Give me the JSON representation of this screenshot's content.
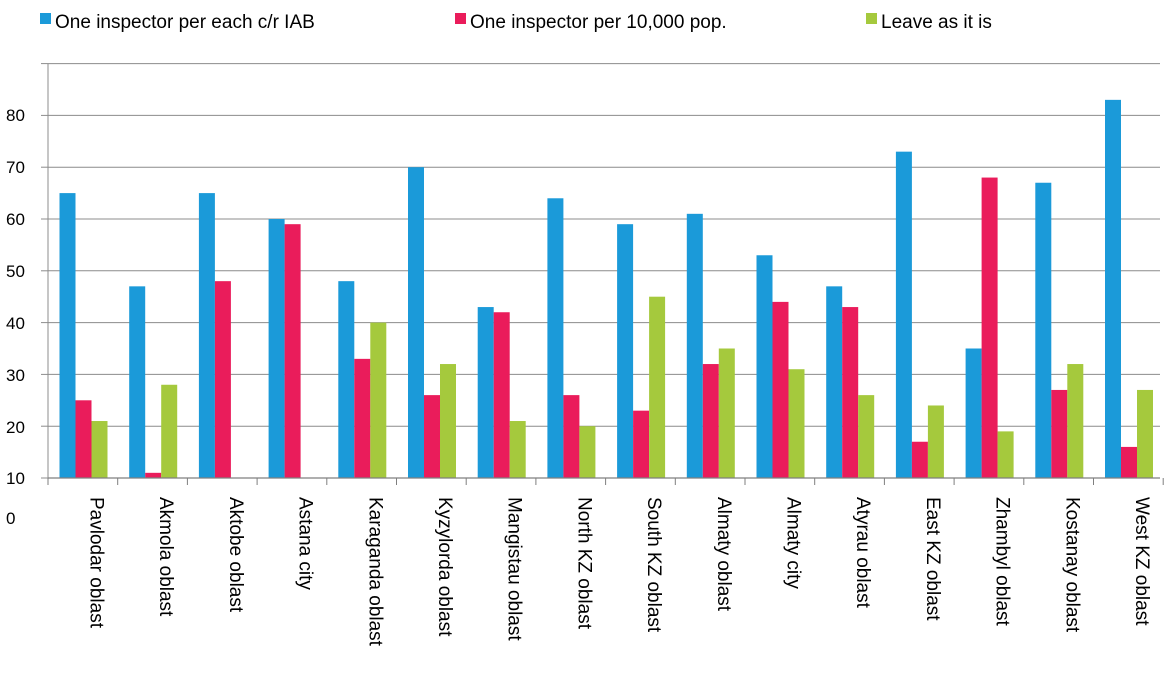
{
  "chart_data": {
    "type": "bar",
    "categories": [
      "Pavlodar oblast",
      "Akmola oblast",
      "Aktobe oblast",
      "Astana city",
      "Karaganda oblast",
      "Kyzylorda oblast",
      "Mangistau oblast",
      "North KZ oblast",
      "South KZ oblast",
      "Almaty oblast",
      "Almaty city",
      "Atyrau oblast",
      "East KZ oblast",
      "Zhambyl oblast",
      "Kostanay oblast",
      "West KZ oblast"
    ],
    "series": [
      {
        "name": "One inspector per each c/r IAB",
        "color": "#1b9ad9",
        "values": [
          65,
          47,
          65,
          60,
          48,
          70,
          43,
          64,
          59,
          61,
          53,
          47,
          73,
          35,
          67,
          83
        ]
      },
      {
        "name": "One inspector per 10,000 pop.",
        "color": "#ea1c5b",
        "values": [
          25,
          11,
          48,
          59,
          33,
          26,
          42,
          26,
          23,
          32,
          44,
          43,
          17,
          68,
          27,
          16
        ]
      },
      {
        "name": "Leave as it is",
        "color": "#a5c93d",
        "values": [
          21,
          28,
          10,
          10,
          40,
          32,
          21,
          20,
          45,
          35,
          31,
          26,
          24,
          19,
          32,
          27
        ]
      }
    ],
    "yticks": [
      "0",
      "10",
      "20",
      "30",
      "40",
      "50",
      "60",
      "70",
      "80"
    ],
    "ylim": [
      10,
      90
    ],
    "title": "",
    "xlabel": "",
    "ylabel": "",
    "grid": true,
    "legend_position": "top"
  }
}
